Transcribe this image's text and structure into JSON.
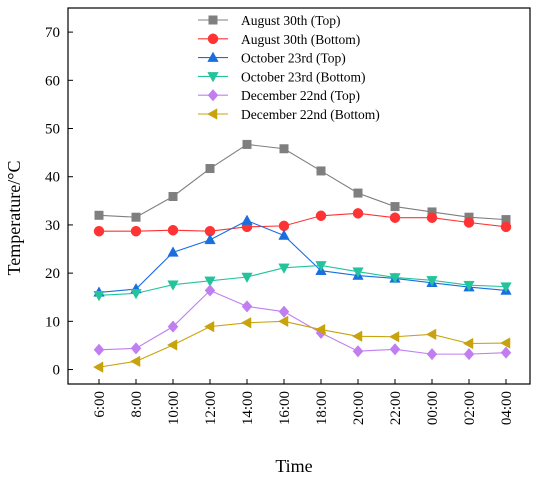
{
  "chart_data": {
    "type": "line",
    "xlabel": "Time",
    "ylabel": "Temperature/°C",
    "ylim": [
      -3,
      75
    ],
    "yticks": [
      0,
      10,
      20,
      30,
      40,
      50,
      60,
      70
    ],
    "categories": [
      "6:00",
      "8:00",
      "10:00",
      "12:00",
      "14:00",
      "16:00",
      "18:00",
      "20:00",
      "22:00",
      "00:00",
      "02:00",
      "04:00"
    ],
    "grid": false,
    "legend_position": "top-center",
    "series": [
      {
        "name": "August 30th (Top)",
        "marker": "square",
        "color": "#7f7f7f",
        "values": [
          32.0,
          31.6,
          35.9,
          41.7,
          46.7,
          45.8,
          41.2,
          36.6,
          33.8,
          32.7,
          31.6,
          31.1
        ]
      },
      {
        "name": "August 30th (Bottom)",
        "marker": "circle",
        "color": "#ff3333",
        "values": [
          28.7,
          28.7,
          28.9,
          28.7,
          29.6,
          29.8,
          31.9,
          32.4,
          31.5,
          31.5,
          30.5,
          29.6
        ]
      },
      {
        "name": "October 23rd (Top)",
        "marker": "triangle-up",
        "color": "#1a6fdf",
        "values": [
          16.0,
          16.7,
          24.3,
          26.9,
          30.9,
          27.8,
          20.5,
          19.5,
          18.9,
          18.0,
          17.1,
          16.4
        ]
      },
      {
        "name": "October 23rd (Bottom)",
        "marker": "triangle-down",
        "color": "#23c49c",
        "values": [
          15.4,
          15.8,
          17.6,
          18.4,
          19.2,
          21.1,
          21.6,
          20.3,
          19.1,
          18.5,
          17.5,
          17.2
        ]
      },
      {
        "name": "December 22nd (Top)",
        "marker": "diamond",
        "color": "#c07ef0",
        "values": [
          4.1,
          4.4,
          8.9,
          16.4,
          13.1,
          12.0,
          7.6,
          3.8,
          4.2,
          3.2,
          3.2,
          3.5
        ]
      },
      {
        "name": "December 22nd (Bottom)",
        "marker": "triangle-left",
        "color": "#c8a30e",
        "values": [
          0.5,
          1.7,
          5.1,
          8.9,
          9.7,
          10.0,
          8.3,
          6.9,
          6.8,
          7.3,
          5.4,
          5.5
        ]
      }
    ]
  }
}
